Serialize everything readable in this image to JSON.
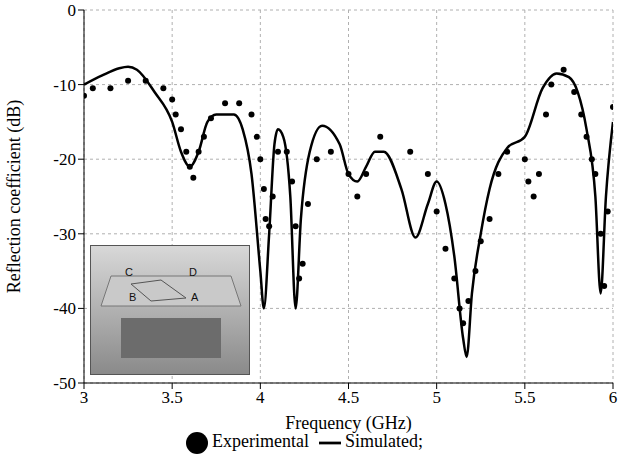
{
  "chart_data": {
    "type": "line",
    "x_label": "Frequency (GHz)",
    "y_label": "Reflection coefficient (dB)",
    "xlim": [
      3,
      6
    ],
    "xticks": [
      3,
      3.5,
      4,
      4.5,
      5,
      5.5,
      6
    ],
    "ylim": [
      -50,
      0
    ],
    "yticks": [
      -50,
      -40,
      -30,
      -20,
      -10,
      0
    ],
    "grid": true,
    "legend": "bottom",
    "annotations": [
      "C",
      "D",
      "B",
      "A"
    ],
    "series": [
      {
        "name": "Simulated;",
        "type": "line",
        "color": "#000000",
        "line_style": "solid",
        "x": [
          3.0,
          3.1,
          3.2,
          3.25,
          3.3,
          3.4,
          3.5,
          3.55,
          3.6,
          3.65,
          3.7,
          3.75,
          3.85,
          3.9,
          3.95,
          4.0,
          4.02,
          4.05,
          4.08,
          4.1,
          4.13,
          4.17,
          4.2,
          4.23,
          4.28,
          4.35,
          4.45,
          4.5,
          4.55,
          4.6,
          4.65,
          4.7,
          4.8,
          4.88,
          4.95,
          5.0,
          5.05,
          5.1,
          5.15,
          5.17,
          5.2,
          5.25,
          5.3,
          5.4,
          5.5,
          5.6,
          5.68,
          5.75,
          5.8,
          5.85,
          5.9,
          5.93,
          5.96,
          6.0
        ],
        "values": [
          -10,
          -8.8,
          -7.8,
          -7.6,
          -8,
          -11,
          -15,
          -19,
          -21,
          -19,
          -15,
          -14,
          -14,
          -16,
          -22,
          -35,
          -40,
          -30,
          -18,
          -16,
          -17,
          -25,
          -40,
          -28,
          -19,
          -15.5,
          -18,
          -22,
          -23,
          -21,
          -19,
          -19,
          -24,
          -30.5,
          -26,
          -23,
          -26,
          -33,
          -44,
          -46.5,
          -38,
          -30,
          -24,
          -18.5,
          -17,
          -10.5,
          -8.5,
          -9,
          -11,
          -16,
          -25,
          -38,
          -25,
          -15
        ]
      },
      {
        "name": "Experimental",
        "type": "scatter",
        "color": "#000000",
        "marker": "circle",
        "x": [
          3.0,
          3.05,
          3.15,
          3.25,
          3.35,
          3.45,
          3.5,
          3.52,
          3.55,
          3.58,
          3.6,
          3.62,
          3.65,
          3.68,
          3.72,
          3.8,
          3.88,
          3.95,
          3.98,
          4.0,
          4.02,
          4.03,
          4.05,
          4.07,
          4.1,
          4.15,
          4.18,
          4.2,
          4.22,
          4.24,
          4.27,
          4.32,
          4.4,
          4.5,
          4.55,
          4.6,
          4.68,
          4.85,
          4.95,
          5.0,
          5.05,
          5.1,
          5.13,
          5.15,
          5.18,
          5.22,
          5.25,
          5.3,
          5.35,
          5.4,
          5.5,
          5.52,
          5.55,
          5.58,
          5.62,
          5.65,
          5.72,
          5.78,
          5.82,
          5.85,
          5.88,
          5.9,
          5.93,
          5.95,
          5.97,
          6.0
        ],
        "values": [
          -11.5,
          -10.5,
          -10.5,
          -9.5,
          -9.5,
          -10.5,
          -12,
          -14,
          -16,
          -19,
          -21,
          -22.5,
          -19,
          -17,
          -14.5,
          -12.5,
          -12.5,
          -14,
          -17,
          -20,
          -24,
          -28,
          -29,
          -25,
          -19,
          -19,
          -23,
          -29,
          -36,
          -34,
          -26,
          -20,
          -19,
          -22,
          -25,
          -22,
          -17,
          -19,
          -22,
          -27,
          -32,
          -36,
          -40,
          -42,
          -39,
          -35,
          -31,
          -28,
          -22,
          -19,
          -20,
          -23,
          -25,
          -22,
          -14,
          -10,
          -8,
          -11,
          -14,
          -17,
          -20,
          -22,
          -30,
          -37,
          -27,
          -13
        ]
      }
    ]
  }
}
